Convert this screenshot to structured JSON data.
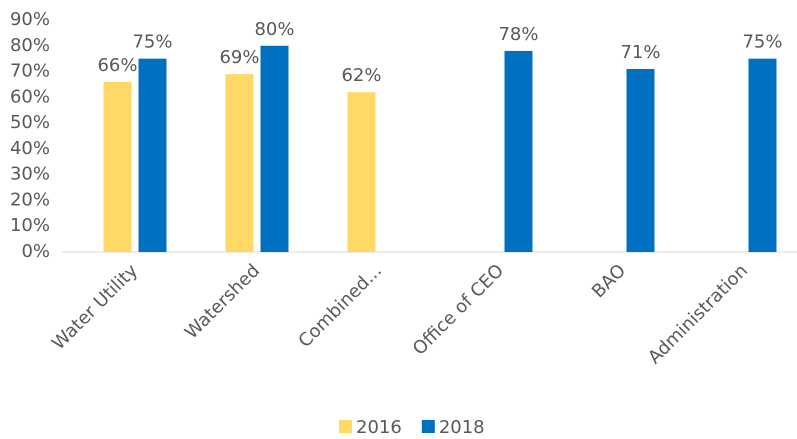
{
  "chart_data": {
    "type": "bar",
    "categories": [
      "Water Utility",
      "Watershed",
      "Combined...",
      "Office of CEO",
      "BAO",
      "Administration"
    ],
    "series": [
      {
        "name": "2016",
        "color": "#FFD966",
        "values": [
          66,
          69,
          62,
          null,
          null,
          null
        ],
        "value_labels": [
          "66%",
          "69%",
          "62%",
          null,
          null,
          null
        ]
      },
      {
        "name": "2018",
        "color": "#0070C0",
        "values": [
          75,
          80,
          null,
          78,
          71,
          75
        ],
        "value_labels": [
          "75%",
          "80%",
          null,
          "78%",
          "71%",
          "75%"
        ]
      }
    ],
    "ylim": [
      0,
      90
    ],
    "yticks": [
      {
        "value": 0,
        "label": "0%"
      },
      {
        "value": 10,
        "label": "10%"
      },
      {
        "value": 20,
        "label": "20%"
      },
      {
        "value": 30,
        "label": "30%"
      },
      {
        "value": 40,
        "label": "40%"
      },
      {
        "value": 50,
        "label": "50%"
      },
      {
        "value": 60,
        "label": "60%"
      },
      {
        "value": 70,
        "label": "70%"
      },
      {
        "value": 80,
        "label": "80%"
      },
      {
        "value": 90,
        "label": "90%"
      }
    ],
    "grid": false,
    "legend": "bottom"
  }
}
